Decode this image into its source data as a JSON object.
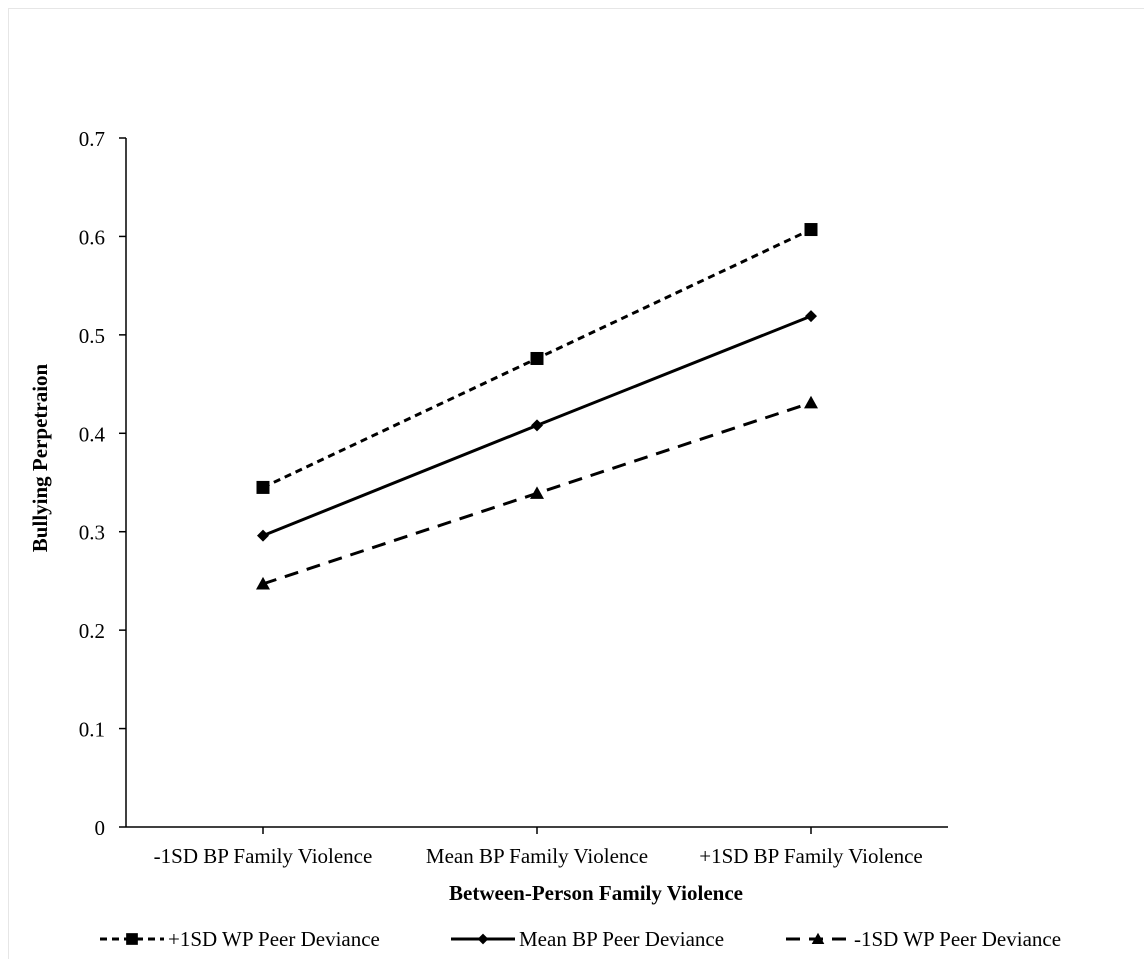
{
  "chart_data": {
    "type": "line",
    "title": "",
    "xlabel": "Between-Person Family Violence",
    "ylabel": "Bullying Perpetraion",
    "categories": [
      "-1SD BP Family Violence",
      "Mean BP Family Violence",
      "+1SD BP Family Violence"
    ],
    "ylim": [
      0,
      0.7
    ],
    "yticks": [
      "0",
      "0.1",
      "0.2",
      "0.3",
      "0.4",
      "0.5",
      "0.6",
      "0.7"
    ],
    "grid": false,
    "legend_position": "bottom",
    "series": [
      {
        "name": "+1SD WP Peer Deviance",
        "values": [
          0.345,
          0.476,
          0.607
        ],
        "marker": "square",
        "line": "short-dash",
        "color": "#000000"
      },
      {
        "name": "Mean BP Peer Deviance",
        "values": [
          0.296,
          0.408,
          0.519
        ],
        "marker": "diamond",
        "line": "solid",
        "color": "#000000"
      },
      {
        "name": "-1SD WP Peer Deviance",
        "values": [
          0.247,
          0.339,
          0.431
        ],
        "marker": "triangle",
        "line": "long-dash",
        "color": "#000000"
      }
    ]
  }
}
